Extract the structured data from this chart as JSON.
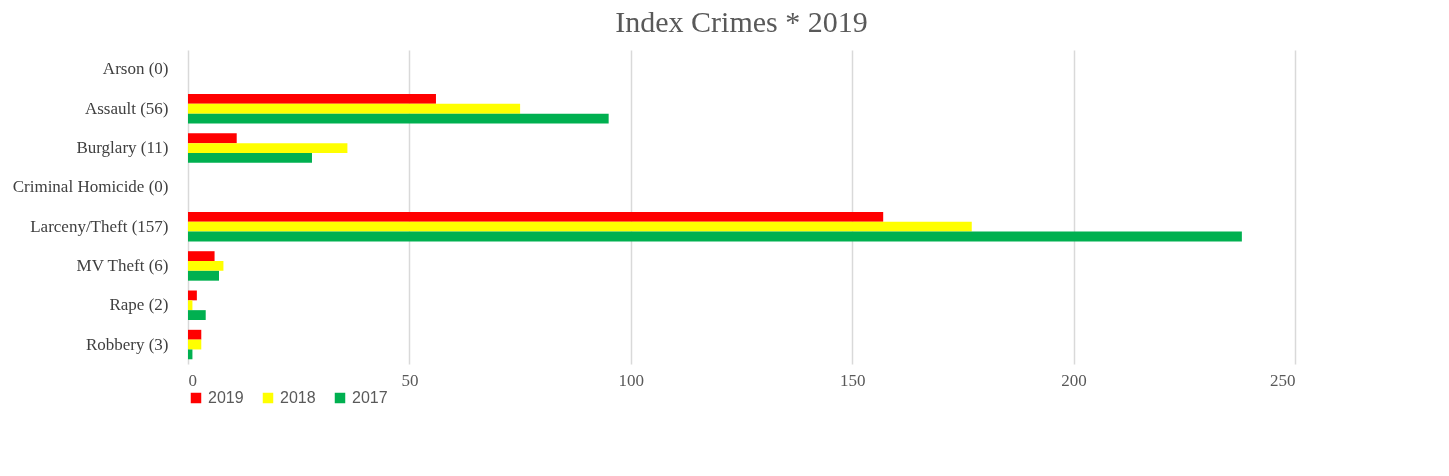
{
  "chart_data": {
    "type": "bar",
    "orientation": "horizontal",
    "title": "Index Crimes * 2019",
    "categories": [
      "Arson (0)",
      "Assault (56)",
      "Burglary (11)",
      "Criminal Homicide (0)",
      "Larceny/Theft (157)",
      "MV Theft (6)",
      "Rape (2)",
      "Robbery (3)"
    ],
    "series": [
      {
        "name": "2019",
        "color": "#ff0000",
        "values": [
          0,
          56,
          11,
          0,
          157,
          6,
          2,
          3
        ]
      },
      {
        "name": "2018",
        "color": "#ffff00",
        "values": [
          0,
          75,
          36,
          0,
          177,
          8,
          1,
          3
        ]
      },
      {
        "name": "2017",
        "color": "#00b050",
        "values": [
          0,
          95,
          28,
          0,
          238,
          7,
          4,
          1
        ]
      }
    ],
    "xlim": [
      0,
      250
    ],
    "xticks": [
      0,
      50,
      100,
      150,
      200,
      250
    ],
    "grid": "x",
    "legend": "bottom"
  }
}
